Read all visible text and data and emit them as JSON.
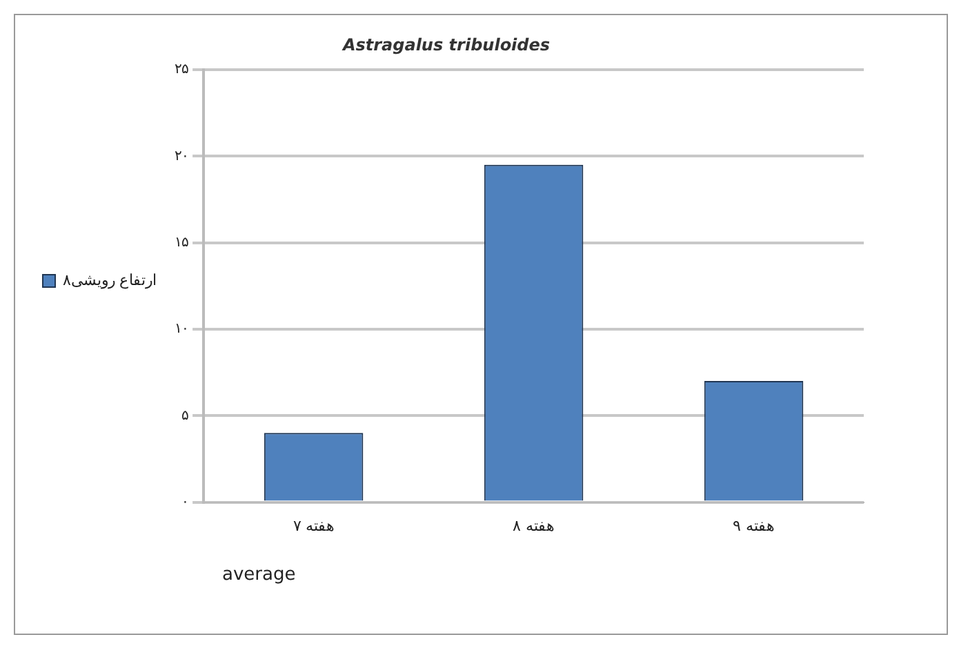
{
  "chart_data": {
    "type": "bar",
    "title": "Astragalus tribuloides",
    "categories": [
      "هفته ۷",
      "هفته ۸",
      "هفته ۹"
    ],
    "series": [
      {
        "name": "ارتفاع رویشی۸",
        "color": "#4f81bd",
        "values": [
          4,
          19.5,
          7
        ]
      }
    ],
    "ylim": [
      0,
      25
    ],
    "yticks": [
      {
        "value": 0,
        "label": "۰"
      },
      {
        "value": 5,
        "label": "۵"
      },
      {
        "value": 10,
        "label": "۱۰"
      },
      {
        "value": 15,
        "label": "۱۵"
      },
      {
        "value": 20,
        "label": "۲۰"
      },
      {
        "value": 25,
        "label": "۲۵"
      }
    ],
    "grid": "y",
    "legend": "left",
    "annotations": [
      "average"
    ]
  }
}
